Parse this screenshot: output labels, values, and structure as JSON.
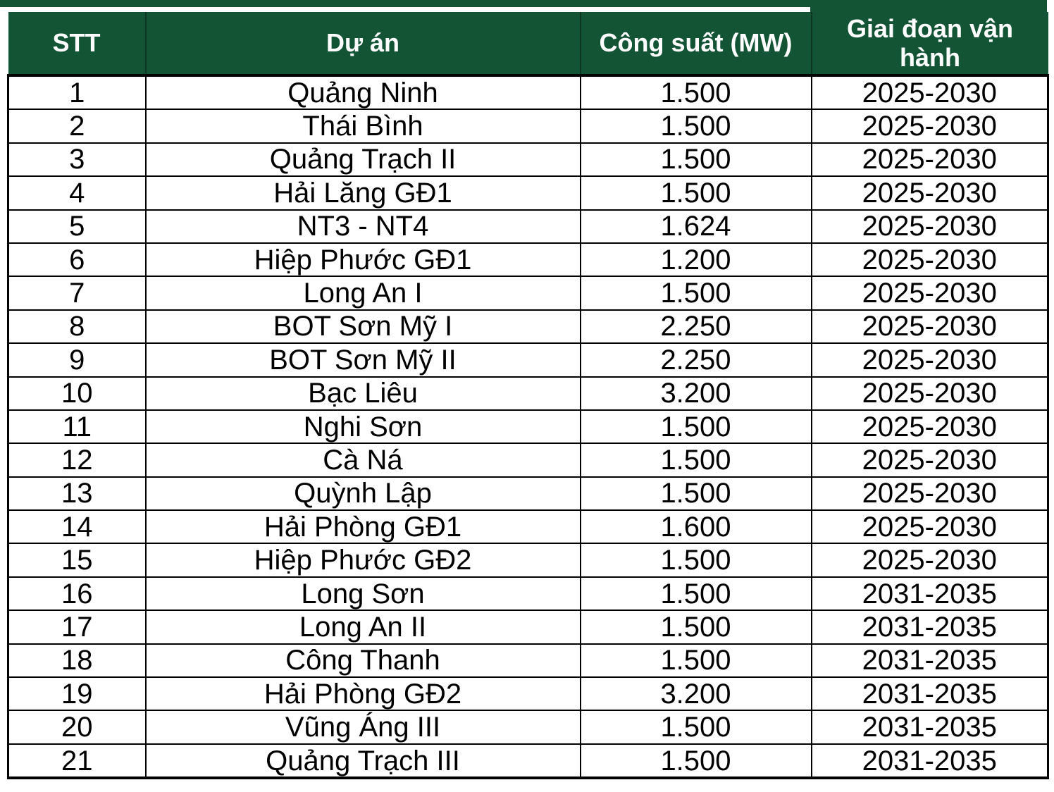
{
  "chart_data": {
    "type": "table",
    "title": "",
    "columns": [
      "STT",
      "Dự án",
      "Công suất (MW)",
      "Giai đoạn vận hành"
    ],
    "rows": [
      [
        "1",
        "Quảng Ninh",
        "1.500",
        "2025-2030"
      ],
      [
        "2",
        "Thái Bình",
        "1.500",
        "2025-2030"
      ],
      [
        "3",
        "Quảng Trạch II",
        "1.500",
        "2025-2030"
      ],
      [
        "4",
        "Hải Lăng GĐ1",
        "1.500",
        "2025-2030"
      ],
      [
        "5",
        "NT3 - NT4",
        "1.624",
        "2025-2030"
      ],
      [
        "6",
        "Hiệp Phước GĐ1",
        "1.200",
        "2025-2030"
      ],
      [
        "7",
        "Long An I",
        "1.500",
        "2025-2030"
      ],
      [
        "8",
        "BOT Sơn Mỹ I",
        "2.250",
        "2025-2030"
      ],
      [
        "9",
        "BOT Sơn Mỹ II",
        "2.250",
        "2025-2030"
      ],
      [
        "10",
        "Bạc Liêu",
        "3.200",
        "2025-2030"
      ],
      [
        "11",
        "Nghi Sơn",
        "1.500",
        "2025-2030"
      ],
      [
        "12",
        "Cà Ná",
        "1.500",
        "2025-2030"
      ],
      [
        "13",
        "Quỳnh Lập",
        "1.500",
        "2025-2030"
      ],
      [
        "14",
        "Hải Phòng GĐ1",
        "1.600",
        "2025-2030"
      ],
      [
        "15",
        "Hiệp Phước GĐ2",
        "1.500",
        "2025-2030"
      ],
      [
        "16",
        "Long Sơn",
        "1.500",
        "2031-2035"
      ],
      [
        "17",
        "Long An II",
        "1.500",
        "2031-2035"
      ],
      [
        "18",
        "Công Thanh",
        "1.500",
        "2031-2035"
      ],
      [
        "19",
        "Hải Phòng GĐ2",
        "3.200",
        "2031-2035"
      ],
      [
        "20",
        "Vũng Áng III",
        "1.500",
        "2031-2035"
      ],
      [
        "21",
        "Quảng Trạch III",
        "1.500",
        "2031-2035"
      ]
    ]
  },
  "colors": {
    "header_background": "#135434",
    "header_text": "#ffffff",
    "body_text": "#000000",
    "border": "#000000",
    "row_background": "#ffffff"
  }
}
